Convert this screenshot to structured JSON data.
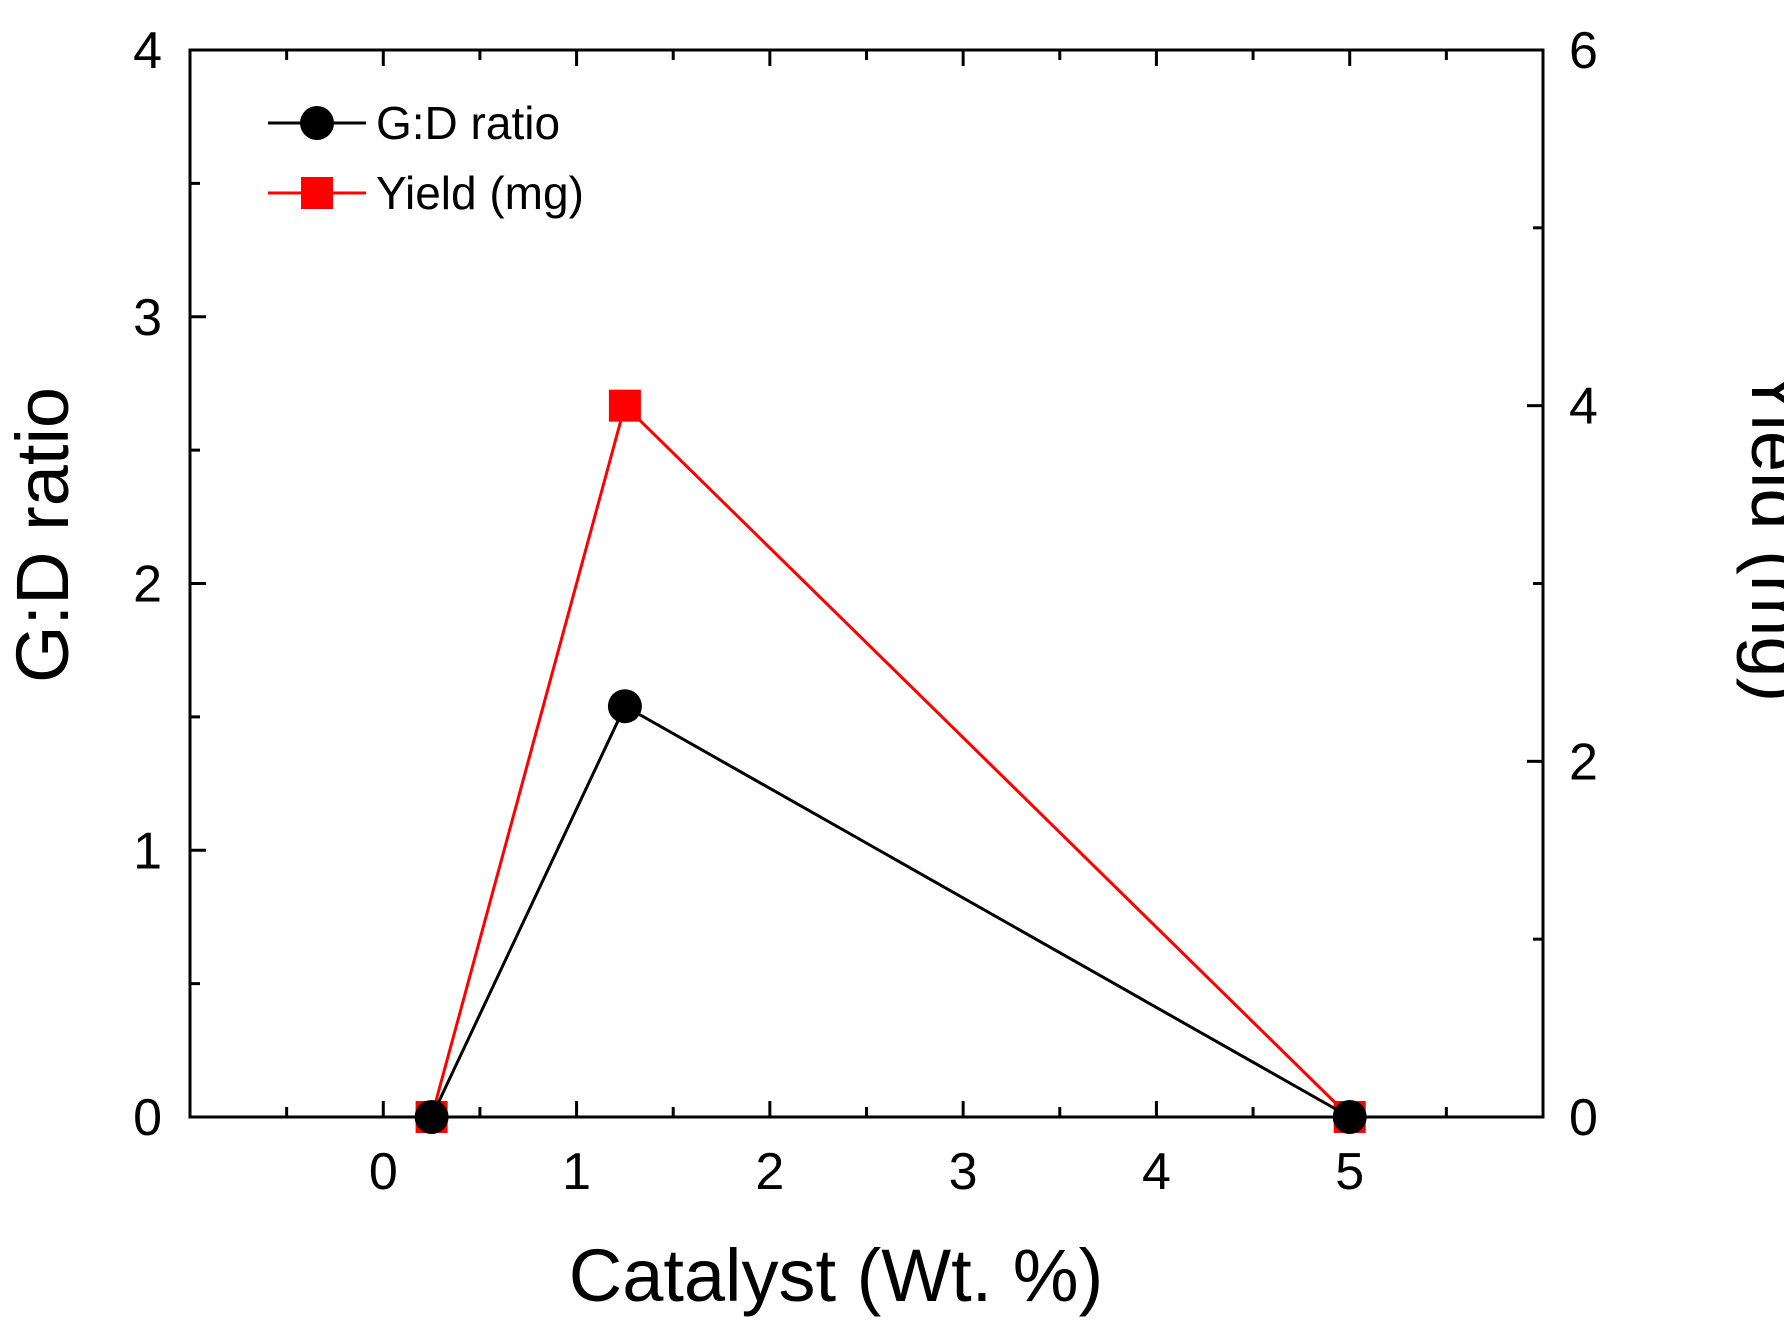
{
  "chart_data": {
    "type": "line",
    "xlabel": "Catalyst (Wt. %)",
    "ylabel_left": "G:D ratio",
    "ylabel_right": "Yield (mg)",
    "xlim": [
      -1,
      6
    ],
    "ylim_left": [
      0,
      4
    ],
    "ylim_right": [
      0,
      6
    ],
    "x_ticks": [
      0,
      1,
      2,
      3,
      4,
      5
    ],
    "x_tick_labels": [
      "0",
      "1",
      "2",
      "3",
      "4",
      "5"
    ],
    "y_left_ticks": [
      0,
      1,
      2,
      3,
      4
    ],
    "y_left_tick_labels": [
      "0",
      "1",
      "2",
      "3",
      "4"
    ],
    "y_right_ticks": [
      0,
      2,
      4,
      6
    ],
    "y_right_tick_labels": [
      "0",
      "2",
      "4",
      "6"
    ],
    "legend_position": "top-left",
    "series": [
      {
        "name": "G:D ratio",
        "axis": "left",
        "marker": "circle",
        "color": "#000000",
        "x": [
          0.25,
          1.25,
          5
        ],
        "values": [
          0,
          1.54,
          0
        ]
      },
      {
        "name": "Yield (mg)",
        "axis": "right",
        "marker": "square",
        "color": "#ff0000",
        "x": [
          0.25,
          1.25,
          5
        ],
        "values": [
          0,
          4.0,
          0
        ]
      }
    ]
  }
}
